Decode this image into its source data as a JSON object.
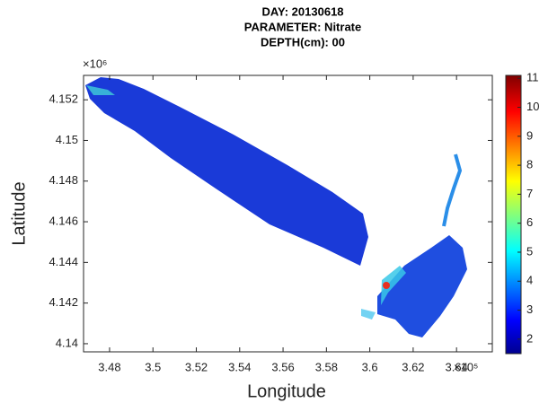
{
  "chart_data": {
    "type": "map",
    "title": [
      "DAY: 20130618",
      "PARAMETER: Nitrate",
      "DEPTH(cm): 00"
    ],
    "x_label": "Longitude",
    "y_label": "Latitude",
    "x_exponent_label": "×10⁵",
    "y_exponent_label": "×10⁶",
    "xlim": [
      3.468,
      3.6565
    ],
    "xticks": [
      3.48,
      3.5,
      3.52,
      3.54,
      3.56,
      3.58,
      3.6,
      3.62,
      3.64
    ],
    "ylim": [
      4.1396,
      4.1532
    ],
    "yticks": [
      4.14,
      4.142,
      4.144,
      4.146,
      4.148,
      4.15,
      4.152
    ],
    "colorbar": {
      "lim": [
        1.5,
        11.1
      ],
      "ticks": [
        2,
        3,
        4,
        5,
        6,
        7,
        8,
        9,
        10,
        11
      ],
      "colormap": "jet"
    }
  }
}
